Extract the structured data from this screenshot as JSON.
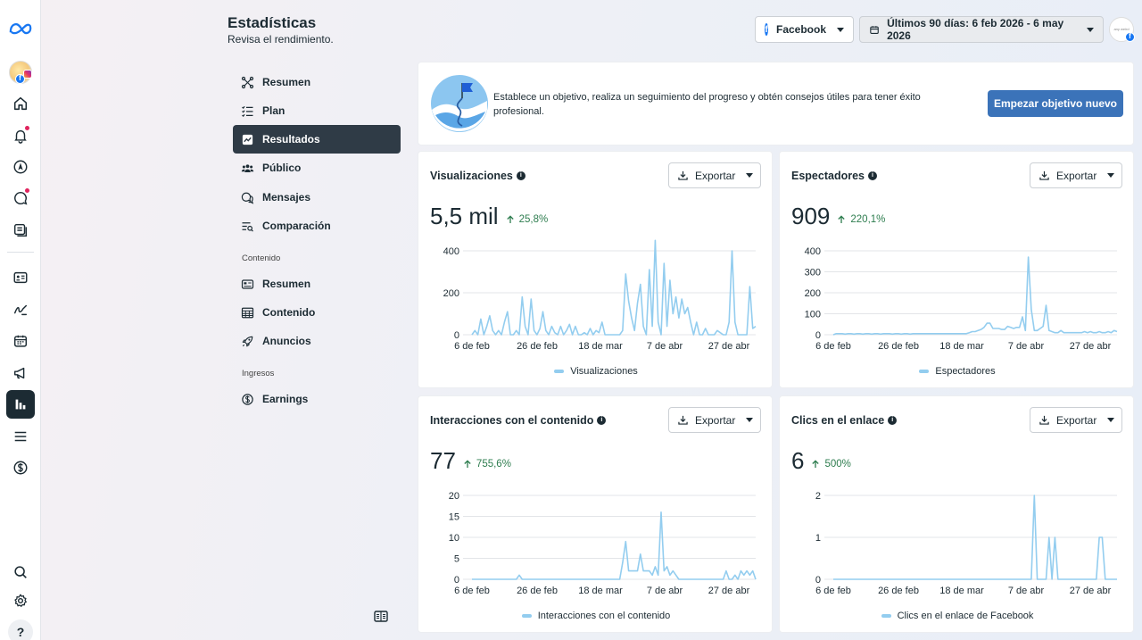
{
  "header": {
    "title": "Estadísticas",
    "subtitle": "Revisa el rendimiento.",
    "platform_label": "Facebook",
    "date_range_label": "Últimos 90 días: 6 feb 2026 - 6 may 2026",
    "account_avatar_text": "any weird"
  },
  "subnav": {
    "items": [
      {
        "label": "Resumen",
        "icon": "network-icon"
      },
      {
        "label": "Plan",
        "icon": "checklist-icon"
      },
      {
        "label": "Resultados",
        "icon": "trend-chart-icon"
      },
      {
        "label": "Público",
        "icon": "people-icon"
      },
      {
        "label": "Mensajes",
        "icon": "chat-bubbles-icon"
      },
      {
        "label": "Comparación",
        "icon": "compare-search-icon"
      }
    ],
    "content_section": "Contenido",
    "content_items": [
      {
        "label": "Resumen",
        "icon": "id-card-icon"
      },
      {
        "label": "Contenido",
        "icon": "table-icon"
      },
      {
        "label": "Anuncios",
        "icon": "rocket-icon"
      }
    ],
    "income_section": "Ingresos",
    "income_items": [
      {
        "label": "Earnings",
        "icon": "dollar-circle-icon"
      }
    ]
  },
  "goal": {
    "text": "Establece un objetivo, realiza un seguimiento del progreso y obtén consejos útiles para tener éxito profesional.",
    "button_label": "Empezar objetivo nuevo"
  },
  "export_label": "Exportar",
  "colors": {
    "series": "#93cdef",
    "accent": "#3b73b9",
    "positive": "#2e7d4f",
    "active_nav": "#2f3b46"
  },
  "metrics": [
    {
      "title": "Visualizaciones",
      "value": "5,5 mil",
      "change": "25,8%",
      "legend": "Visualizaciones"
    },
    {
      "title": "Espectadores",
      "value": "909",
      "change": "220,1%",
      "legend": "Espectadores"
    },
    {
      "title": "Interacciones con el contenido",
      "value": "77",
      "change": "755,6%",
      "legend": "Interacciones con el contenido"
    },
    {
      "title": "Clics en el enlace",
      "value": "6",
      "change": "500%",
      "legend": "Clics en el enlace de Facebook"
    }
  ],
  "chart_data": [
    {
      "type": "line",
      "x_tick_labels": [
        "6 de feb",
        "26 de feb",
        "18 de mar",
        "7 de abr",
        "27 de abr"
      ],
      "ylim": [
        0,
        400
      ],
      "y_ticks": [
        0,
        200,
        400
      ],
      "grid": true,
      "legend_position": "bottom",
      "series": [
        {
          "name": "Visualizaciones",
          "values": [
            0,
            20,
            0,
            75,
            0,
            40,
            90,
            20,
            0,
            20,
            0,
            60,
            110,
            0,
            0,
            20,
            0,
            180,
            40,
            0,
            170,
            20,
            0,
            30,
            110,
            20,
            0,
            40,
            10,
            0,
            40,
            0,
            20,
            50,
            0,
            40,
            0,
            0,
            10,
            0,
            30,
            0,
            20,
            10,
            60,
            0,
            0,
            0,
            0,
            0,
            0,
            20,
            290,
            160,
            80,
            20,
            150,
            240,
            40,
            0,
            310,
            40,
            450,
            60,
            0,
            340,
            40,
            260,
            100,
            180,
            80,
            170,
            100,
            130,
            60,
            0,
            60,
            0,
            0,
            30,
            0,
            0,
            0,
            20,
            10,
            0,
            0,
            60,
            400,
            60,
            0,
            0,
            0,
            0,
            230,
            30,
            40
          ]
        }
      ]
    },
    {
      "type": "line",
      "x_tick_labels": [
        "6 de feb",
        "26 de feb",
        "18 de mar",
        "7 de abr",
        "27 de abr"
      ],
      "ylim": [
        0,
        400
      ],
      "y_ticks": [
        0,
        100,
        200,
        300,
        400
      ],
      "grid": true,
      "legend_position": "bottom",
      "series": [
        {
          "name": "Espectadores",
          "values": [
            0,
            5,
            5,
            5,
            3,
            5,
            5,
            3,
            5,
            5,
            3,
            5,
            5,
            3,
            5,
            5,
            3,
            5,
            5,
            5,
            3,
            5,
            5,
            3,
            5,
            5,
            3,
            5,
            5,
            5,
            5,
            5,
            5,
            5,
            5,
            5,
            5,
            5,
            5,
            5,
            5,
            5,
            5,
            5,
            5,
            5,
            10,
            15,
            15,
            20,
            25,
            35,
            55,
            55,
            30,
            30,
            30,
            25,
            25,
            40,
            35,
            30,
            35,
            35,
            85,
            20,
            370,
            120,
            20,
            20,
            30,
            40,
            140,
            20,
            15,
            10,
            10,
            20,
            10,
            10,
            10,
            10,
            10,
            10,
            10,
            15,
            10,
            15,
            10,
            10,
            15,
            10,
            10,
            15,
            10,
            20,
            15
          ]
        }
      ]
    },
    {
      "type": "line",
      "x_tick_labels": [
        "6 de feb",
        "26 de feb",
        "18 de mar",
        "7 de abr",
        "27 de abr"
      ],
      "ylim": [
        0,
        20
      ],
      "y_ticks": [
        0,
        5,
        10,
        15,
        20
      ],
      "grid": true,
      "legend_position": "bottom",
      "series": [
        {
          "name": "Interacciones con el contenido",
          "values": [
            0,
            0,
            0,
            0,
            0,
            0,
            0,
            0,
            0,
            0,
            0,
            0,
            0,
            0,
            0,
            0,
            1,
            0,
            0,
            0,
            0,
            0,
            0,
            0,
            0,
            0,
            0,
            0,
            0,
            0,
            0,
            0,
            0,
            0,
            0,
            0,
            0,
            0,
            0,
            0,
            0,
            0,
            0,
            0,
            0,
            0,
            0,
            0,
            0,
            0,
            0,
            4,
            9,
            2,
            2,
            2,
            2,
            6,
            2,
            2,
            2,
            1,
            3,
            1,
            16,
            2,
            3,
            1,
            2,
            1,
            0,
            0,
            0,
            0,
            0,
            0,
            0,
            0,
            0,
            0,
            0,
            0,
            0,
            0,
            0,
            0,
            2,
            0,
            0,
            1,
            0,
            2,
            1,
            2,
            1,
            2,
            0
          ]
        }
      ]
    },
    {
      "type": "line",
      "x_tick_labels": [
        "6 de feb",
        "26 de feb",
        "18 de mar",
        "7 de abr",
        "27 de abr"
      ],
      "ylim": [
        0,
        2
      ],
      "y_ticks": [
        0,
        1,
        2
      ],
      "grid": true,
      "legend_position": "bottom",
      "series": [
        {
          "name": "Clics en el enlace de Facebook",
          "values": [
            0,
            0,
            0,
            0,
            0,
            0,
            0,
            0,
            0,
            0,
            0,
            0,
            0,
            0,
            0,
            0,
            0,
            0,
            0,
            0,
            0,
            0,
            0,
            0,
            0,
            0,
            0,
            0,
            0,
            0,
            0,
            0,
            0,
            0,
            0,
            0,
            0,
            0,
            0,
            0,
            0,
            0,
            0,
            0,
            0,
            0,
            0,
            0,
            0,
            0,
            0,
            0,
            0,
            0,
            0,
            0,
            0,
            0,
            0,
            0,
            0,
            0,
            0,
            0,
            0,
            0,
            0,
            0,
            2,
            0,
            0,
            0,
            0,
            1,
            0,
            1,
            0,
            0,
            0,
            0,
            0,
            0,
            0,
            0,
            0,
            0,
            0,
            0,
            0,
            0,
            1,
            1,
            0,
            0,
            0,
            0,
            0
          ]
        }
      ]
    }
  ]
}
